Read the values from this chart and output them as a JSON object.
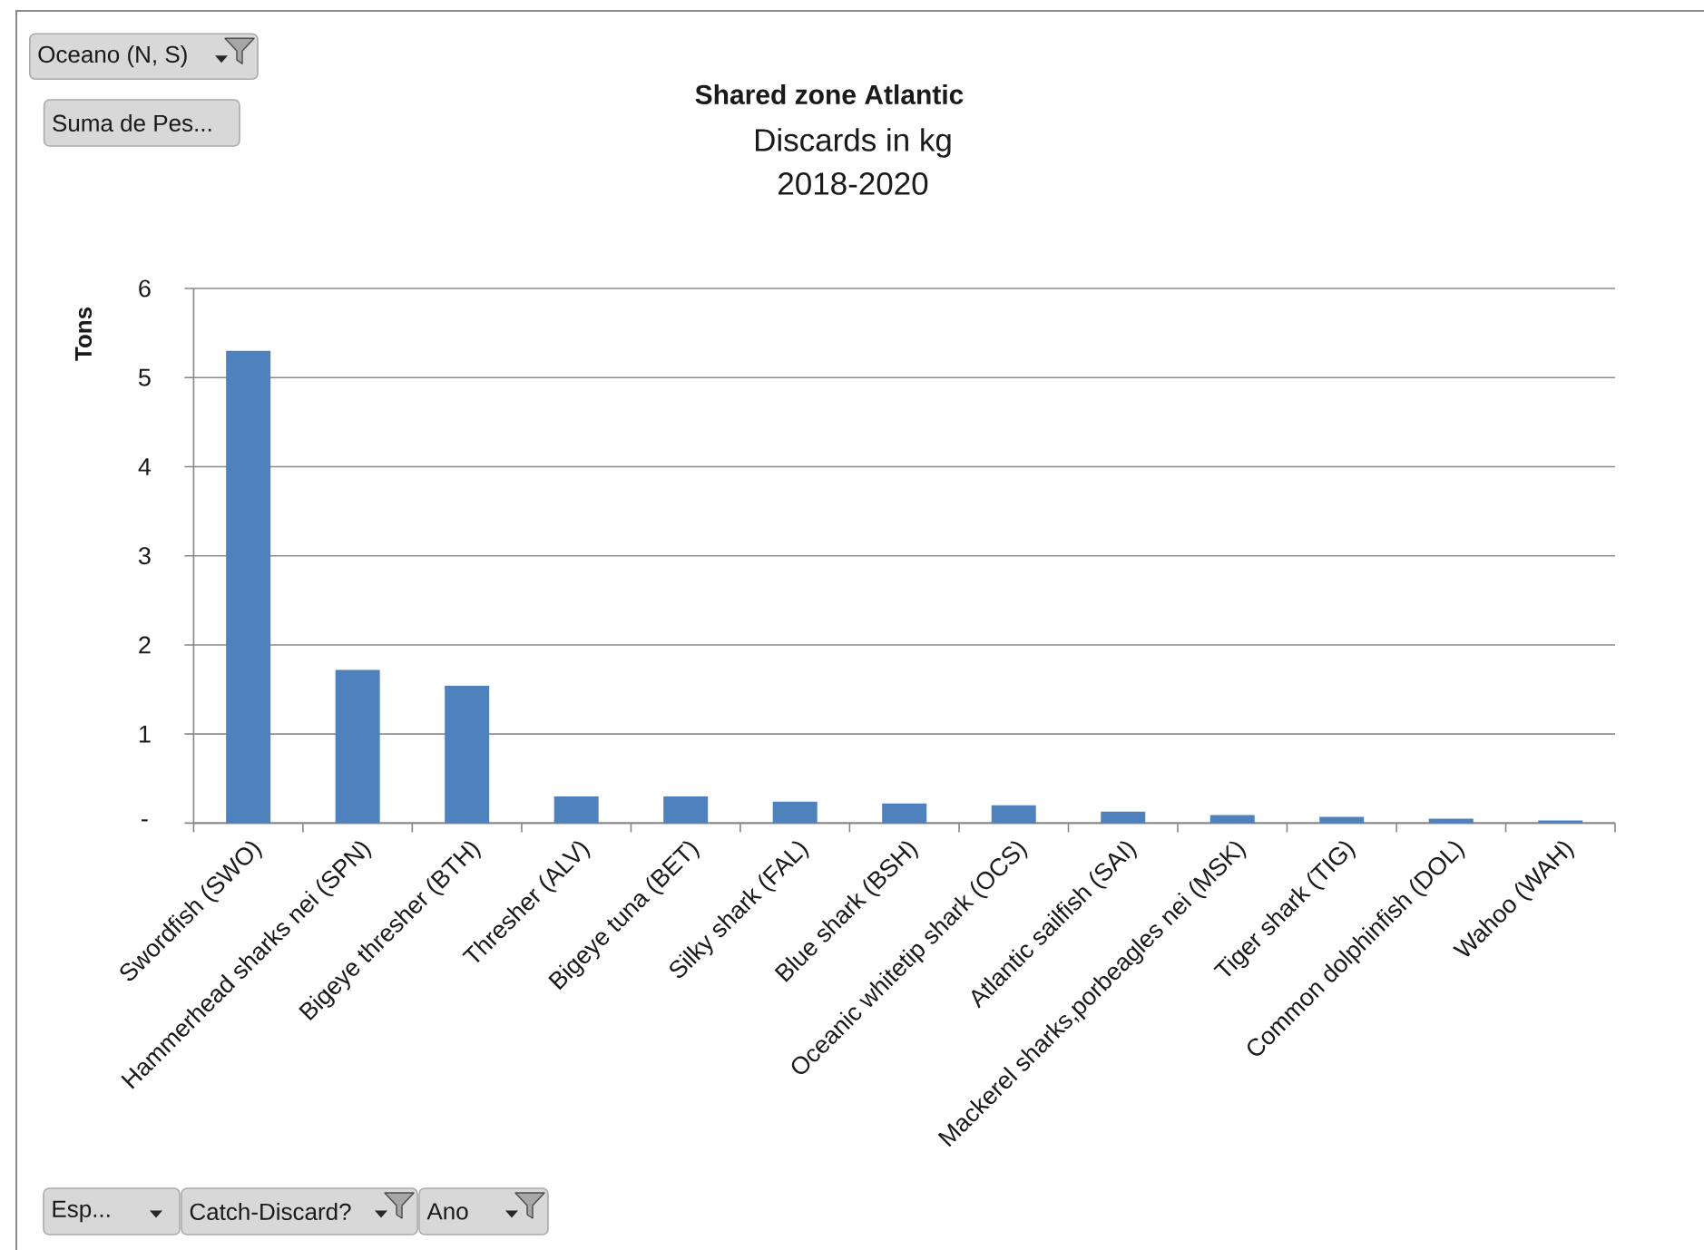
{
  "chart_data": {
    "type": "bar",
    "title": "Shared zone Atlantic",
    "subtitle": "Discards in kg 2018-2020",
    "ylabel": "Tons",
    "annotations": [
      "Oceano (N, S)",
      "Suma de Pes...",
      "Esp...",
      "Catch-Discard?",
      "Ano"
    ],
    "categories": [
      "Swordfish (SWO)",
      "Hammerhead sharks nei (SPN)",
      "Bigeye thresher (BTH)",
      "Thresher (ALV)",
      "Bigeye tuna (BET)",
      "Silky shark (FAL)",
      "Blue shark (BSH)",
      "Oceanic whitetip shark (OCS)",
      "Atlantic sailfish (SAI)",
      "Mackerel sharks,porbeagles nei (MSK)",
      "Tiger shark (TIG)",
      "Common dolphinfish (DOL)",
      "Wahoo (WAH)"
    ],
    "values": [
      5.3,
      1.72,
      1.54,
      0.3,
      0.3,
      0.24,
      0.22,
      0.2,
      0.13,
      0.09,
      0.07,
      0.05,
      0.03
    ],
    "color": "#4f81bd",
    "ylim": [
      0,
      6
    ],
    "yticks": [
      {
        "value": 0,
        "label": "-"
      },
      1,
      2,
      3,
      4,
      5,
      6
    ],
    "grid": "y"
  }
}
